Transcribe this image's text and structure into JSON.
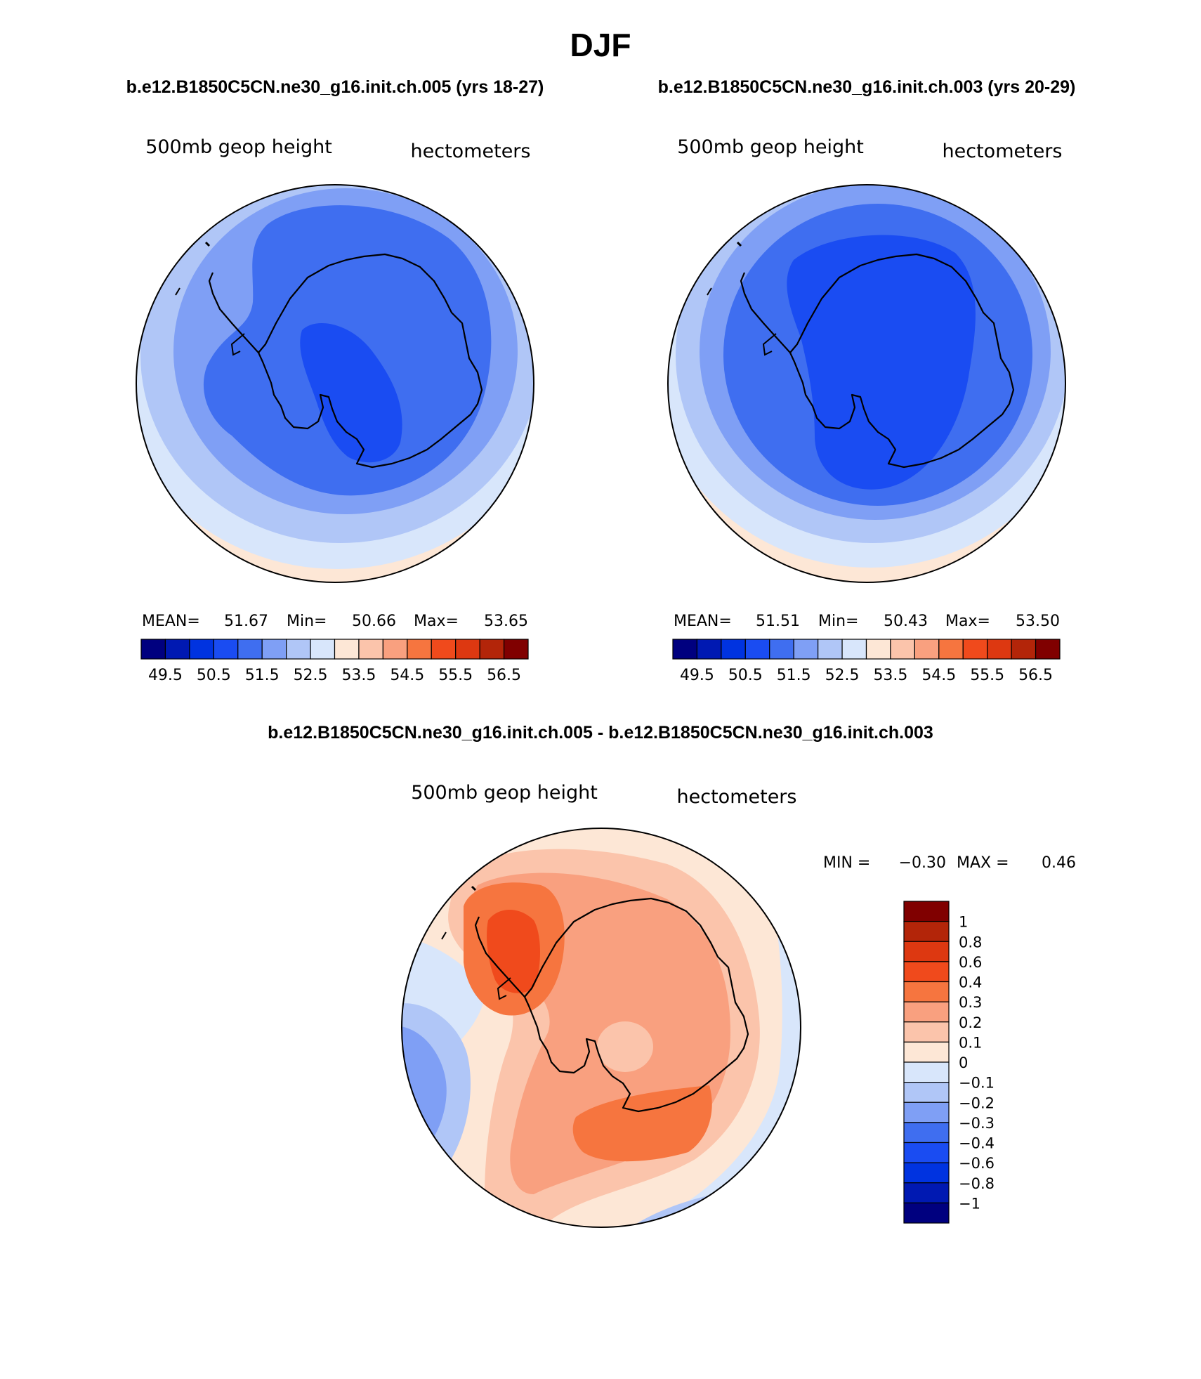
{
  "page": {
    "title": "DJF",
    "subtitle_left": "b.e12.B1850C5CN.ne30_g16.init.ch.005 (yrs 18-27)",
    "subtitle_right": "b.e12.B1850C5CN.ne30_g16.init.ch.003 (yrs 20-29)",
    "diff_title": "b.e12.B1850C5CN.ne30_g16.init.ch.005 - b.e12.B1850C5CN.ne30_g16.init.ch.003"
  },
  "colors": {
    "abs_scale": [
      "#00007f",
      "#0019b2",
      "#0033e0",
      "#1a4cf2",
      "#3f6ef0",
      "#7f9ff5",
      "#b0c6f7",
      "#d8e6fb",
      "#fde7d6",
      "#fbc4ab",
      "#f9a07f",
      "#f6753f",
      "#f04a1c",
      "#dd3811",
      "#b32509",
      "#800000"
    ],
    "diff_scale": [
      "#800000",
      "#b32509",
      "#dd3811",
      "#f04a1c",
      "#f6753f",
      "#f9a07f",
      "#fbc4ab",
      "#fde7d6",
      "#d8e6fb",
      "#b0c6f7",
      "#7f9ff5",
      "#3f6ef0",
      "#1a4cf2",
      "#0033e0",
      "#0019b2",
      "#00007f"
    ]
  },
  "chart_data": [
    {
      "type": "heatmap",
      "projection": "south-polar-stereographic",
      "field": "500mb geop height",
      "units": "hectometers",
      "stats": {
        "mean_label": "MEAN=",
        "mean": "51.67",
        "min_label": "Min=",
        "min": "50.66",
        "max_label": "Max=",
        "max": "53.65"
      },
      "levels": [
        49.5,
        50.0,
        50.5,
        51.0,
        51.5,
        52.0,
        52.5,
        53.0,
        53.5,
        54.0,
        54.5,
        55.0,
        55.5,
        56.0,
        56.5
      ],
      "tick_labels": [
        "49.5",
        "50.5",
        "51.5",
        "52.5",
        "53.5",
        "54.5",
        "55.5",
        "56.5"
      ],
      "colorbar": "horizontal-bottom"
    },
    {
      "type": "heatmap",
      "projection": "south-polar-stereographic",
      "field": "500mb geop height",
      "units": "hectometers",
      "stats": {
        "mean_label": "MEAN=",
        "mean": "51.51",
        "min_label": "Min=",
        "min": "50.43",
        "max_label": "Max=",
        "max": "53.50"
      },
      "levels": [
        49.5,
        50.0,
        50.5,
        51.0,
        51.5,
        52.0,
        52.5,
        53.0,
        53.5,
        54.0,
        54.5,
        55.0,
        55.5,
        56.0,
        56.5
      ],
      "tick_labels": [
        "49.5",
        "50.5",
        "51.5",
        "52.5",
        "53.5",
        "54.5",
        "55.5",
        "56.5"
      ],
      "colorbar": "horizontal-bottom"
    },
    {
      "type": "heatmap",
      "projection": "south-polar-stereographic",
      "field": "500mb geop height",
      "units": "hectometers",
      "stats": {
        "min_label": "MIN =",
        "min": "−0.30",
        "max_label": "MAX =",
        "max": "0.46"
      },
      "levels": [
        1,
        0.8,
        0.6,
        0.4,
        0.3,
        0.2,
        0.1,
        0,
        -0.1,
        -0.2,
        -0.3,
        -0.4,
        -0.6,
        -0.8,
        -1
      ],
      "tick_labels": [
        "1",
        "0.8",
        "0.6",
        "0.4",
        "0.3",
        "0.2",
        "0.1",
        "0",
        "−0.1",
        "−0.2",
        "−0.3",
        "−0.4",
        "−0.6",
        "−0.8",
        "−1"
      ],
      "colorbar": "vertical-right"
    }
  ]
}
